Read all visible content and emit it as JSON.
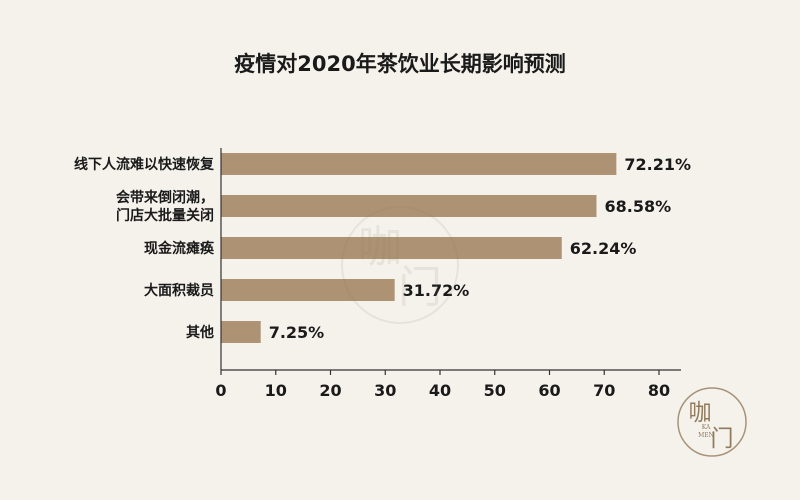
{
  "chart_data": {
    "type": "bar",
    "orientation": "horizontal",
    "title": "疫情对2020年茶饮业长期影响预测",
    "categories": [
      [
        "线下人流难以快速恢复"
      ],
      [
        "会带来倒闭潮，",
        "门店大批量关闭"
      ],
      [
        "现金流瘫痪"
      ],
      [
        "大面积裁员"
      ],
      [
        "其他"
      ]
    ],
    "values": [
      72.21,
      68.58,
      62.24,
      31.72,
      7.25
    ],
    "value_labels": [
      "72.21%",
      "68.58%",
      "62.24%",
      "31.72%",
      "7.25%"
    ],
    "xlim": [
      0,
      80
    ],
    "xticks": [
      0,
      10,
      20,
      30,
      40,
      50,
      60,
      70,
      80
    ],
    "xlabel": "",
    "ylabel": "",
    "grid": false,
    "bar_color": "#ad9373"
  },
  "logo": {
    "chars": [
      "咖",
      "门"
    ],
    "subtext": [
      "KA",
      "MEN"
    ]
  }
}
